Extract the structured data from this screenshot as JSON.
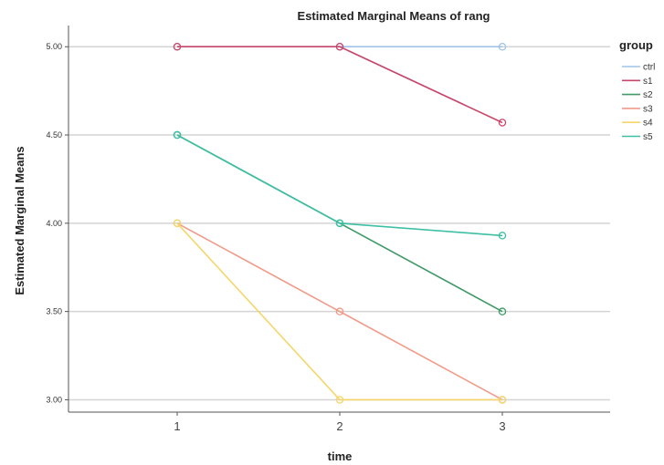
{
  "chart_data": {
    "type": "line",
    "title": "Estimated Marginal Means of rang",
    "xlabel": "time",
    "ylabel": "Estimated Marginal Means",
    "x": [
      "1",
      "2",
      "3"
    ],
    "ylim": [
      2.93,
      5.12
    ],
    "yticks": [
      "3.00",
      "3.50",
      "4.00",
      "4.50",
      "5.00"
    ],
    "grid": "horizontal",
    "legend": {
      "title": "group",
      "placement": "right"
    },
    "series": [
      {
        "name": "ctrl",
        "color": "#9fc3e8",
        "values": [
          5.0,
          5.0,
          5.0
        ]
      },
      {
        "name": "s1",
        "color": "#c8466b",
        "values": [
          5.0,
          5.0,
          4.57
        ]
      },
      {
        "name": "s2",
        "color": "#3f9a68",
        "values": [
          4.5,
          4.0,
          3.5
        ]
      },
      {
        "name": "s3",
        "color": "#f29a88",
        "values": [
          4.0,
          3.5,
          3.0
        ]
      },
      {
        "name": "s4",
        "color": "#f4d66a",
        "values": [
          4.0,
          3.0,
          3.0
        ]
      },
      {
        "name": "s5",
        "color": "#3cbfa4",
        "values": [
          4.5,
          4.0,
          3.93
        ]
      }
    ]
  }
}
